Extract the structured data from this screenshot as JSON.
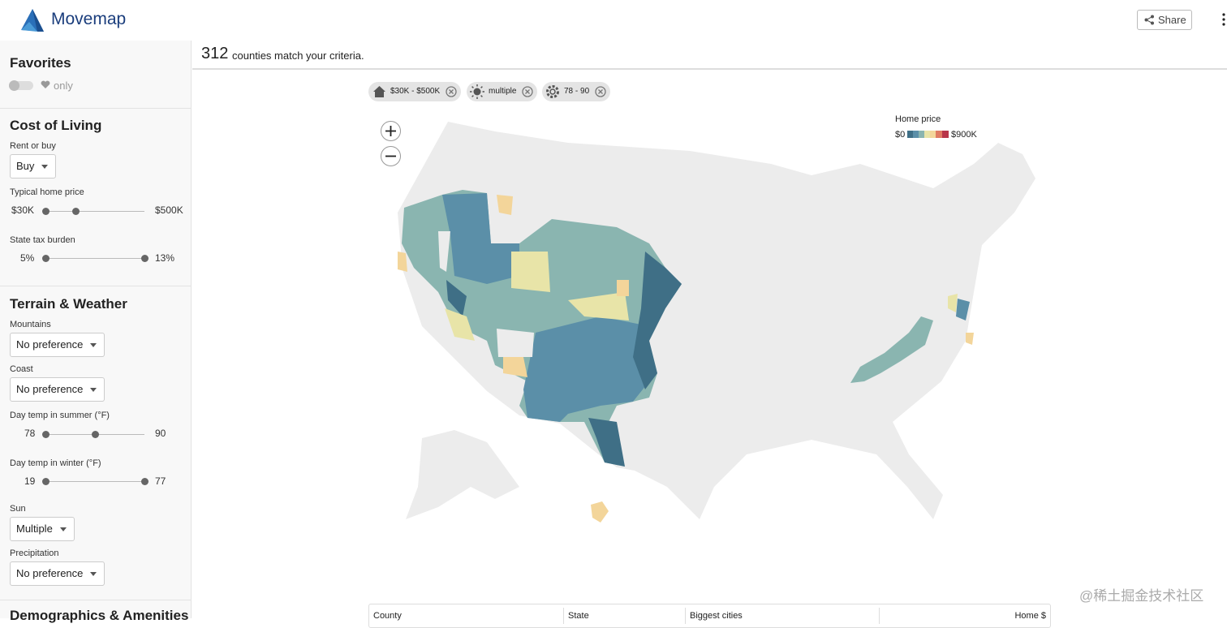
{
  "header": {
    "app_name": "Movemap",
    "share": "Share"
  },
  "summary": {
    "count": 312,
    "text": "counties match your criteria."
  },
  "sidebar": {
    "favorites": {
      "title": "Favorites",
      "toggle_label": "only"
    },
    "cost_of_living": {
      "title": "Cost of Living",
      "rent_or_buy": {
        "label": "Rent or buy",
        "value": "Buy"
      },
      "home_price": {
        "label": "Typical home price",
        "min": "$30K",
        "max": "$500K"
      },
      "tax": {
        "label": "State tax burden",
        "min": "5%",
        "max": "13%"
      }
    },
    "terrain_weather": {
      "title": "Terrain & Weather",
      "mountains": {
        "label": "Mountains",
        "value": "No preference"
      },
      "coast": {
        "label": "Coast",
        "value": "No preference"
      },
      "summer": {
        "label": "Day temp in summer (°F)",
        "min": 78,
        "max": 90
      },
      "winter": {
        "label": "Day temp in winter (°F)",
        "min": 19,
        "max": 77
      },
      "sun": {
        "label": "Sun",
        "value": "Multiple"
      },
      "precipitation": {
        "label": "Precipitation",
        "value": "No preference"
      }
    },
    "demographics": {
      "title": "Demographics & Amenities"
    }
  },
  "chips": [
    "$30K - $500K",
    "multiple",
    "78 - 90"
  ],
  "legend": {
    "title": "Home price",
    "min": "$0",
    "max": "$900K"
  },
  "table": {
    "headers": [
      "County",
      "State",
      "Biggest cities",
      "Home $"
    ]
  },
  "watermark": "@稀土掘金技术社区"
}
